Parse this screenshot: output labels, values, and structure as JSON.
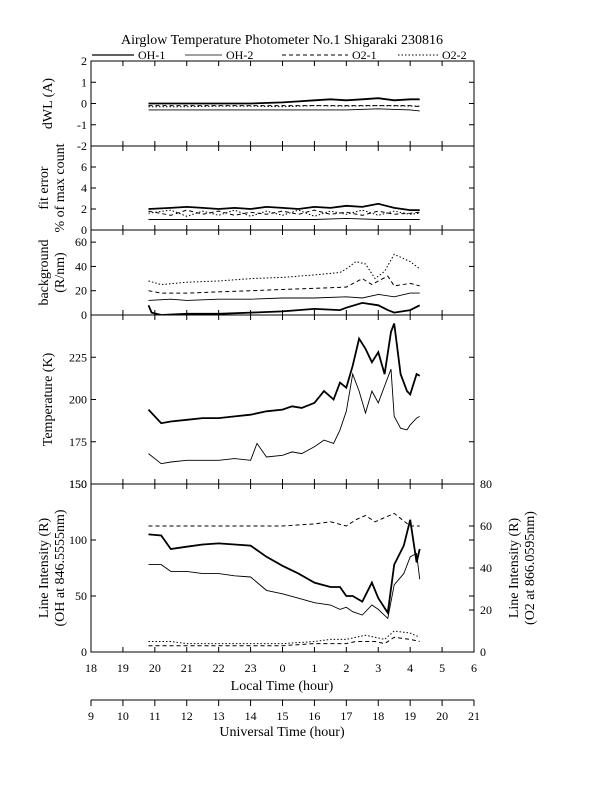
{
  "chart_data": {
    "type": "line",
    "title": "Airglow Temperature Photometer No.1  Shigaraki  230816",
    "legend": {
      "placement": "top",
      "entries": [
        "OH-1",
        "OH-2",
        "O2-1",
        "O2-2"
      ]
    },
    "x_axis": {
      "label": "Local Time (hour)",
      "range": [
        18,
        30
      ],
      "tick_labels": [
        "18",
        "19",
        "20",
        "21",
        "22",
        "23",
        "0",
        "1",
        "2",
        "3",
        "4",
        "5",
        "6"
      ]
    },
    "x2_axis": {
      "label": "Universal Time (hour)",
      "range": [
        9,
        21
      ],
      "tick_labels": [
        "9",
        "10",
        "11",
        "12",
        "13",
        "14",
        "15",
        "16",
        "17",
        "18",
        "19",
        "20",
        "21"
      ]
    },
    "panels": [
      {
        "id": "dwl",
        "ylabel": [
          "dWL (A)"
        ],
        "ylim": [
          -2,
          2
        ],
        "yticks": [
          "2",
          "1",
          "0",
          "-1",
          "-2"
        ],
        "series": [
          {
            "style": "solid-thick",
            "x": [
              19.8,
              20.2,
              21,
              22,
              23,
              24,
              24.5,
              25,
              25.5,
              26,
              26.5,
              27,
              27.5,
              28,
              28.3
            ],
            "y": [
              0.0,
              0.0,
              0.0,
              0.0,
              0.0,
              0.05,
              0.1,
              0.15,
              0.2,
              0.15,
              0.2,
              0.25,
              0.15,
              0.2,
              0.2
            ]
          },
          {
            "style": "solid-thin",
            "x": [
              19.8,
              21,
              22,
              23,
              24,
              25,
              26,
              27,
              28,
              28.3
            ],
            "y": [
              -0.3,
              -0.3,
              -0.3,
              -0.3,
              -0.3,
              -0.3,
              -0.3,
              -0.25,
              -0.3,
              -0.35
            ]
          },
          {
            "style": "dashed",
            "x": [
              19.8,
              21,
              22,
              23,
              24,
              25,
              26,
              27,
              28,
              28.3
            ],
            "y": [
              -0.1,
              -0.1,
              -0.1,
              -0.1,
              -0.1,
              -0.1,
              -0.1,
              -0.1,
              -0.1,
              -0.15
            ]
          },
          {
            "style": "dotted",
            "x": [
              19.8,
              21,
              22,
              23,
              24,
              25,
              26,
              27,
              28,
              28.3
            ],
            "y": [
              -0.15,
              -0.15,
              -0.12,
              -0.12,
              -0.15,
              -0.1,
              -0.12,
              -0.1,
              -0.12,
              -0.12
            ]
          }
        ]
      },
      {
        "id": "fit-error",
        "ylabel": [
          "fit error",
          "% of max count"
        ],
        "ylim": [
          0,
          8
        ],
        "yticks": [
          "6",
          "4",
          "2",
          "0"
        ],
        "series": [
          {
            "style": "solid-thick",
            "x": [
              19.8,
              20.5,
              21,
              21.5,
              22,
              22.5,
              23,
              23.5,
              24,
              24.5,
              25,
              25.5,
              26,
              26.5,
              27,
              27.5,
              28,
              28.3
            ],
            "y": [
              2.0,
              2.1,
              2.2,
              2.1,
              2.0,
              2.1,
              2.0,
              2.2,
              2.1,
              2.0,
              2.2,
              2.1,
              2.3,
              2.2,
              2.5,
              2.1,
              1.9,
              1.9
            ]
          },
          {
            "style": "solid-thin",
            "x": [
              19.8,
              21,
              22,
              23,
              24,
              25,
              26,
              27,
              28,
              28.3
            ],
            "y": [
              1.0,
              1.0,
              1.0,
              1.0,
              1.0,
              1.0,
              1.1,
              1.0,
              1.0,
              1.0
            ]
          },
          {
            "style": "dashed",
            "x": [
              19.8,
              20.5,
              21,
              21.5,
              22,
              22.5,
              23,
              23.5,
              24,
              24.5,
              25,
              25.5,
              26,
              26.5,
              27,
              27.5,
              28,
              28.3
            ],
            "y": [
              1.8,
              1.4,
              1.9,
              1.5,
              1.8,
              1.4,
              1.7,
              1.5,
              1.8,
              1.5,
              1.9,
              1.5,
              1.7,
              1.4,
              1.8,
              1.5,
              1.6,
              1.7
            ]
          },
          {
            "style": "dotted",
            "x": [
              19.8,
              20.5,
              21,
              21.5,
              22,
              22.5,
              23,
              23.5,
              24,
              24.5,
              25,
              25.5,
              26,
              26.5,
              27,
              27.5,
              28,
              28.3
            ],
            "y": [
              1.6,
              1.9,
              1.3,
              1.8,
              1.4,
              1.9,
              1.3,
              1.8,
              1.4,
              1.9,
              1.3,
              1.8,
              1.5,
              1.9,
              1.4,
              1.8,
              1.5,
              1.6
            ]
          }
        ]
      },
      {
        "id": "background",
        "ylabel": [
          "background",
          "(R/nm)"
        ],
        "ylim": [
          0,
          70
        ],
        "yticks": [
          "60",
          "40",
          "20",
          "0"
        ],
        "series": [
          {
            "style": "solid-thick",
            "x": [
              19.8,
              19.9,
              20.2,
              21,
              22,
              23,
              24,
              25,
              25.8,
              26,
              26.5,
              27,
              27.3,
              27.5,
              28,
              28.3
            ],
            "y": [
              8,
              2,
              0,
              1,
              1,
              2,
              3,
              5,
              4,
              6,
              10,
              8,
              4,
              2,
              4,
              8
            ]
          },
          {
            "style": "solid-thin",
            "x": [
              19.8,
              20.5,
              21,
              22,
              23,
              24,
              25,
              26,
              26.5,
              27,
              27.5,
              28,
              28.3
            ],
            "y": [
              12,
              13,
              12,
              13,
              13,
              14,
              14,
              15,
              14,
              17,
              15,
              18,
              18
            ]
          },
          {
            "style": "dashed",
            "x": [
              19.8,
              20.2,
              21,
              22,
              23,
              24,
              25,
              26,
              26.5,
              26.8,
              27,
              27.3,
              27.5,
              28,
              28.3
            ],
            "y": [
              20,
              18,
              18,
              19,
              20,
              21,
              22,
              23,
              30,
              25,
              28,
              32,
              24,
              26,
              24
            ]
          },
          {
            "style": "dotted",
            "x": [
              19.8,
              20.2,
              21,
              22,
              23,
              24,
              25,
              25.8,
              26,
              26.3,
              26.6,
              26.9,
              27.2,
              27.5,
              28,
              28.3
            ],
            "y": [
              28,
              25,
              27,
              28,
              30,
              31,
              33,
              35,
              38,
              44,
              42,
              30,
              36,
              50,
              44,
              38
            ]
          }
        ]
      },
      {
        "id": "temperature",
        "ylabel": [
          "Temperature (K)"
        ],
        "ylim": [
          150,
          250
        ],
        "yticks": [
          "225",
          "200",
          "175",
          "150"
        ],
        "series": [
          {
            "style": "solid-thick",
            "x": [
              19.8,
              20.2,
              20.5,
              21,
              21.5,
              22,
              22.5,
              23,
              23.5,
              24,
              24.3,
              24.6,
              25,
              25.3,
              25.6,
              25.8,
              26,
              26.2,
              26.4,
              26.6,
              26.8,
              27,
              27.2,
              27.4,
              27.5,
              27.7,
              27.9,
              28,
              28.2,
              28.3
            ],
            "y": [
              194,
              186,
              187,
              188,
              189,
              189,
              190,
              191,
              193,
              194,
              196,
              195,
              198,
              205,
              200,
              210,
              207,
              220,
              236,
              230,
              222,
              228,
              215,
              240,
              245,
              215,
              205,
              203,
              215,
              214
            ]
          },
          {
            "style": "solid-thin",
            "x": [
              19.8,
              20.2,
              20.5,
              21,
              21.5,
              22,
              22.5,
              23,
              23.2,
              23.5,
              24,
              24.3,
              24.6,
              25,
              25.3,
              25.6,
              25.8,
              26,
              26.2,
              26.4,
              26.6,
              26.8,
              27,
              27.2,
              27.4,
              27.5,
              27.7,
              27.9,
              28,
              28.2,
              28.3
            ],
            "y": [
              168,
              162,
              163,
              164,
              164,
              164,
              165,
              164,
              174,
              166,
              167,
              169,
              168,
              172,
              176,
              174,
              182,
              193,
              215,
              205,
              192,
              205,
              198,
              208,
              218,
              190,
              183,
              182,
              185,
              189,
              190
            ]
          }
        ]
      },
      {
        "id": "line-intensity",
        "ylabel": [
          "Line Intensity (R)",
          "(OH at 846.5555nm)"
        ],
        "ylim": [
          0,
          150
        ],
        "yticks": [
          "150",
          "100",
          "50",
          "0"
        ],
        "y2label": [
          "Line Intensity (R)",
          "(O2 at 866.0595nm)"
        ],
        "y2lim": [
          0,
          80
        ],
        "y2ticks": [
          "80",
          "60",
          "40",
          "20",
          "0"
        ],
        "series": [
          {
            "style": "solid-thick",
            "axis": "left",
            "x": [
              19.8,
              20.2,
              20.5,
              21,
              21.5,
              22,
              22.5,
              23,
              23.5,
              24,
              24.5,
              25,
              25.5,
              25.8,
              26,
              26.2,
              26.5,
              26.8,
              27,
              27.3,
              27.5,
              27.8,
              28,
              28.2,
              28.3
            ],
            "y": [
              105,
              104,
              92,
              94,
              96,
              97,
              96,
              95,
              85,
              77,
              70,
              62,
              58,
              58,
              50,
              50,
              45,
              62,
              48,
              35,
              78,
              95,
              118,
              80,
              92
            ]
          },
          {
            "style": "solid-thin",
            "axis": "left",
            "x": [
              19.8,
              20.2,
              20.5,
              21,
              21.5,
              22,
              22.5,
              23,
              23.5,
              24,
              24.5,
              25,
              25.5,
              25.8,
              26,
              26.2,
              26.5,
              26.8,
              27,
              27.3,
              27.5,
              27.8,
              28,
              28.2,
              28.3
            ],
            "y": [
              78,
              78,
              72,
              72,
              70,
              70,
              68,
              67,
              55,
              52,
              48,
              44,
              42,
              38,
              40,
              36,
              33,
              42,
              38,
              30,
              60,
              70,
              85,
              88,
              65
            ]
          },
          {
            "style": "dashed",
            "axis": "right",
            "x": [
              19.8,
              20.5,
              21,
              22,
              23,
              24,
              25,
              25.5,
              26,
              26.3,
              26.6,
              26.9,
              27.2,
              27.5,
              28,
              28.3
            ],
            "y": [
              60,
              60,
              60,
              60,
              60,
              60,
              61,
              62,
              60,
              63,
              65,
              62,
              64,
              66,
              60,
              60
            ]
          },
          {
            "style": "dotted",
            "axis": "right",
            "x": [
              19.8,
              20.5,
              21,
              22,
              23,
              24,
              25,
              25.5,
              26,
              26.3,
              26.6,
              26.9,
              27.2,
              27.5,
              28,
              28.3
            ],
            "y": [
              5,
              5,
              4,
              4,
              4,
              4,
              5,
              6,
              6,
              7,
              8,
              7,
              6,
              10,
              9,
              7
            ]
          },
          {
            "style": "dashed-low",
            "axis": "right",
            "x": [
              19.8,
              20.5,
              21,
              22,
              23,
              24,
              25,
              25.5,
              26,
              26.3,
              26.6,
              26.9,
              27.2,
              27.5,
              28,
              28.3
            ],
            "y": [
              3,
              3,
              3,
              3,
              3,
              3,
              4,
              4,
              4,
              5,
              5,
              5,
              4,
              7,
              6,
              5
            ]
          }
        ]
      }
    ]
  }
}
